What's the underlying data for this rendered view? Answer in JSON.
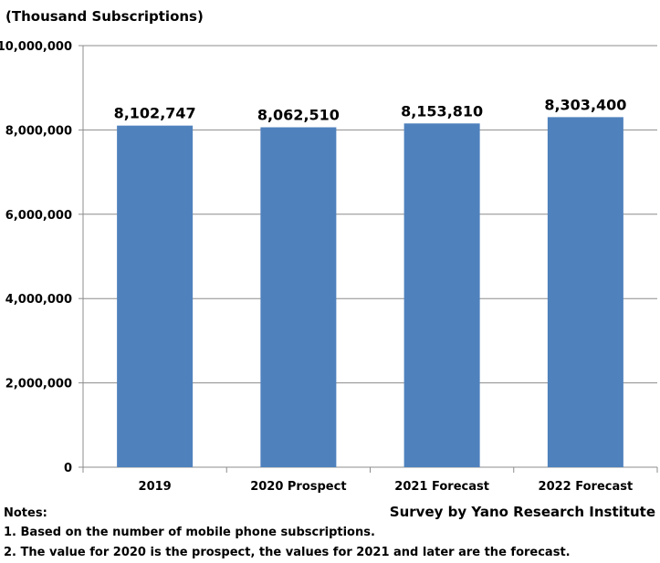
{
  "chart_data": {
    "type": "bar",
    "unit_label": "(Thousand Subscriptions)",
    "categories": [
      "2019",
      "2020 Prospect",
      "2021 Forecast",
      "2022 Forecast"
    ],
    "values": [
      8102747,
      8062510,
      8153810,
      8303400
    ],
    "data_labels": [
      "8,102,747",
      "8,062,510",
      "8,153,810",
      "8,303,400"
    ],
    "y_ticks": [
      0,
      2000000,
      4000000,
      6000000,
      8000000,
      10000000
    ],
    "y_tick_labels": [
      "0",
      "2,000,000",
      "4,000,000",
      "6,000,000",
      "8,000,000",
      "10,000,000"
    ],
    "ylim": [
      0,
      10000000
    ],
    "grid": true,
    "legend": "none",
    "bar_color": "#4f81bd"
  },
  "notes": {
    "heading": "Notes:",
    "items": [
      "1. Based on the number of mobile phone subscriptions.",
      "2. The value for 2020 is the prospect, the values for 2021 and later are the forecast."
    ]
  },
  "credit": "Survey by Yano Research Institute"
}
